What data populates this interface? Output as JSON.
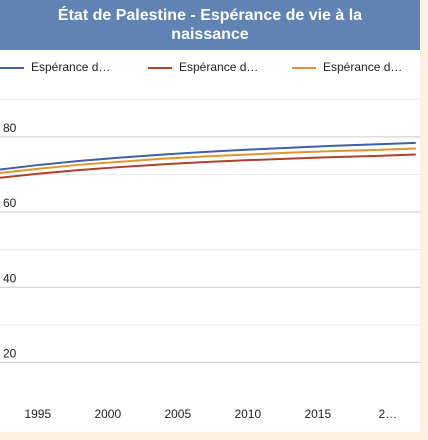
{
  "chart_data": {
    "type": "line",
    "title": "État de Palestine - Espérance de vie à la naissance",
    "x": [
      1992,
      1995,
      1998,
      2001,
      2004,
      2007,
      2010,
      2013,
      2016,
      2019,
      2022
    ],
    "series": [
      {
        "name": "Espérance d…",
        "color": "#3f5fa6",
        "values": [
          71.2,
          72.5,
          73.6,
          74.5,
          75.3,
          76.0,
          76.6,
          77.1,
          77.6,
          78.0,
          78.4
        ]
      },
      {
        "name": "Espérance d…",
        "color": "#b0402a",
        "values": [
          69.0,
          70.2,
          71.2,
          72.0,
          72.7,
          73.3,
          73.8,
          74.2,
          74.6,
          74.9,
          75.3
        ]
      },
      {
        "name": "Espérance d…",
        "color": "#e0952f",
        "values": [
          70.3,
          71.5,
          72.6,
          73.4,
          74.2,
          74.8,
          75.3,
          75.8,
          76.2,
          76.5,
          76.9
        ]
      }
    ],
    "xlim": [
      1992.3,
      2022.3
    ],
    "xticks": [
      1995,
      2000,
      2005,
      2010,
      2015,
      {
        "value": 2020,
        "label": "2…"
      }
    ],
    "ylim": [
      10,
      93
    ],
    "yticks": [
      20,
      40,
      60,
      80
    ],
    "minor_yticks": [
      30,
      50,
      70,
      90
    ],
    "grid": true,
    "legend": "top"
  }
}
